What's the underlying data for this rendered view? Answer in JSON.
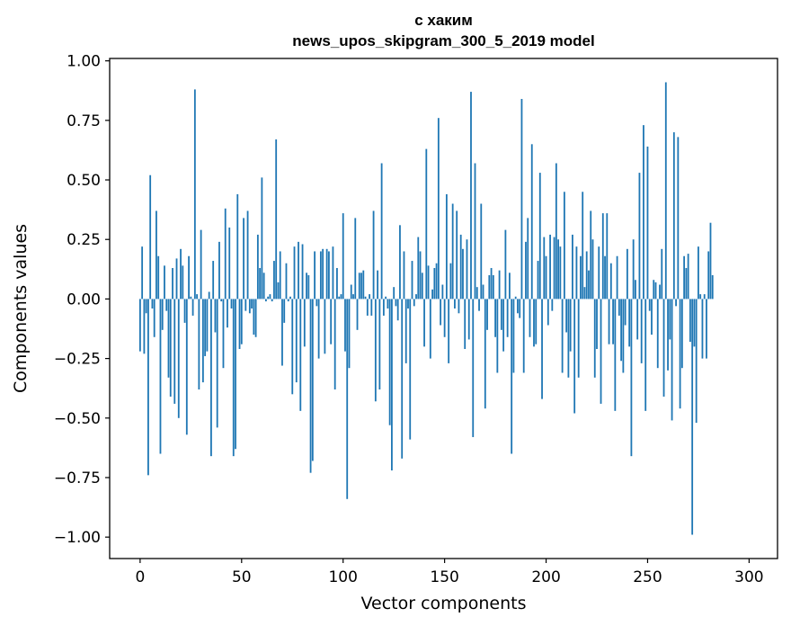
{
  "chart_data": {
    "type": "bar",
    "title_line1": "с хаким",
    "title_line2": "news_upos_skipgram_300_5_2019 model",
    "xlabel": "Vector components",
    "ylabel": "Components values",
    "xlim": [
      -15,
      314
    ],
    "ylim": [
      -1.09,
      1.01
    ],
    "xticks": [
      0,
      50,
      100,
      150,
      200,
      250,
      300
    ],
    "xtick_labels": [
      "0",
      "50",
      "100",
      "150",
      "200",
      "250",
      "300"
    ],
    "yticks": [
      1.0,
      0.75,
      0.5,
      0.25,
      0.0,
      -0.25,
      -0.5,
      -0.75,
      -1.0
    ],
    "ytick_labels": [
      "1.00",
      "0.75",
      "0.50",
      "0.25",
      "0.00",
      "−0.25",
      "−0.50",
      "−0.75",
      "−1.00"
    ],
    "bar_color": "#1f77b4",
    "values": [
      -0.22,
      0.22,
      -0.23,
      -0.06,
      -0.74,
      0.52,
      -0.04,
      -0.16,
      0.37,
      0.18,
      -0.65,
      -0.13,
      0.14,
      -0.05,
      -0.33,
      -0.41,
      0.13,
      -0.44,
      0.17,
      -0.5,
      0.21,
      0.14,
      -0.1,
      -0.57,
      0.18,
      0.01,
      -0.07,
      0.88,
      0.02,
      -0.38,
      0.29,
      -0.35,
      -0.24,
      -0.22,
      0.03,
      -0.66,
      0.16,
      -0.14,
      -0.54,
      0.24,
      -0.01,
      -0.29,
      0.38,
      -0.12,
      0.3,
      -0.04,
      -0.66,
      -0.63,
      0.44,
      -0.21,
      -0.19,
      0.34,
      -0.05,
      0.37,
      -0.06,
      -0.04,
      -0.15,
      -0.16,
      0.27,
      0.13,
      0.51,
      0.11,
      -0.01,
      0.01,
      0.02,
      -0.01,
      0.16,
      0.67,
      0.07,
      0.2,
      -0.28,
      -0.1,
      0.15,
      -0.01,
      0.01,
      -0.4,
      0.22,
      -0.35,
      0.24,
      -0.47,
      0.23,
      -0.2,
      0.11,
      0.1,
      -0.73,
      -0.68,
      0.2,
      -0.03,
      -0.25,
      0.2,
      0.21,
      -0.23,
      0.21,
      0.2,
      -0.19,
      0.22,
      -0.38,
      0.13,
      0.01,
      0.02,
      0.36,
      -0.22,
      -0.84,
      -0.29,
      0.06,
      0.02,
      0.34,
      -0.13,
      0.11,
      0.11,
      0.12,
      0.01,
      -0.07,
      0.02,
      -0.07,
      0.37,
      -0.43,
      0.12,
      -0.38,
      0.57,
      -0.07,
      0.01,
      -0.04,
      -0.53,
      -0.72,
      0.05,
      -0.03,
      -0.09,
      0.31,
      -0.67,
      0.2,
      -0.27,
      -0.04,
      -0.59,
      0.16,
      -0.03,
      0.02,
      0.26,
      0.2,
      0.11,
      -0.2,
      0.63,
      0.14,
      -0.25,
      0.04,
      0.13,
      0.15,
      0.76,
      -0.11,
      0.06,
      -0.16,
      0.44,
      -0.27,
      0.15,
      0.4,
      -0.04,
      0.37,
      -0.06,
      0.27,
      0.21,
      -0.21,
      0.25,
      -0.17,
      0.87,
      -0.58,
      0.57,
      0.05,
      -0.05,
      0.4,
      0.06,
      -0.46,
      -0.13,
      0.1,
      0.13,
      0.1,
      -0.16,
      -0.31,
      0.12,
      -0.13,
      -0.22,
      0.29,
      -0.16,
      0.11,
      -0.65,
      -0.31,
      0.01,
      -0.06,
      -0.08,
      0.84,
      -0.31,
      0.24,
      0.34,
      -0.16,
      0.65,
      -0.2,
      -0.19,
      0.16,
      0.53,
      -0.42,
      0.26,
      0.18,
      -0.11,
      0.27,
      -0.05,
      0.26,
      0.57,
      0.25,
      0.22,
      -0.31,
      0.45,
      -0.14,
      -0.33,
      -0.22,
      0.27,
      -0.48,
      0.22,
      -0.33,
      0.18,
      0.45,
      0.05,
      0.2,
      0.12,
      0.37,
      0.25,
      -0.33,
      -0.21,
      0.22,
      -0.44,
      0.36,
      0.18,
      0.36,
      -0.19,
      0.15,
      -0.19,
      -0.47,
      0.18,
      -0.07,
      -0.26,
      -0.31,
      -0.11,
      0.21,
      -0.2,
      -0.66,
      0.25,
      0.08,
      -0.17,
      0.53,
      -0.27,
      0.73,
      -0.47,
      0.64,
      -0.05,
      -0.15,
      0.08,
      0.07,
      -0.29,
      0.06,
      0.21,
      -0.41,
      0.91,
      -0.3,
      -0.17,
      -0.51,
      0.7,
      -0.03,
      0.68,
      -0.46,
      -0.29,
      0.18,
      0.13,
      0.19,
      -0.18,
      -0.99,
      -0.2,
      -0.52,
      0.22,
      0.02,
      -0.25,
      0.02,
      -0.25,
      0.2,
      0.32,
      0.1
    ]
  }
}
